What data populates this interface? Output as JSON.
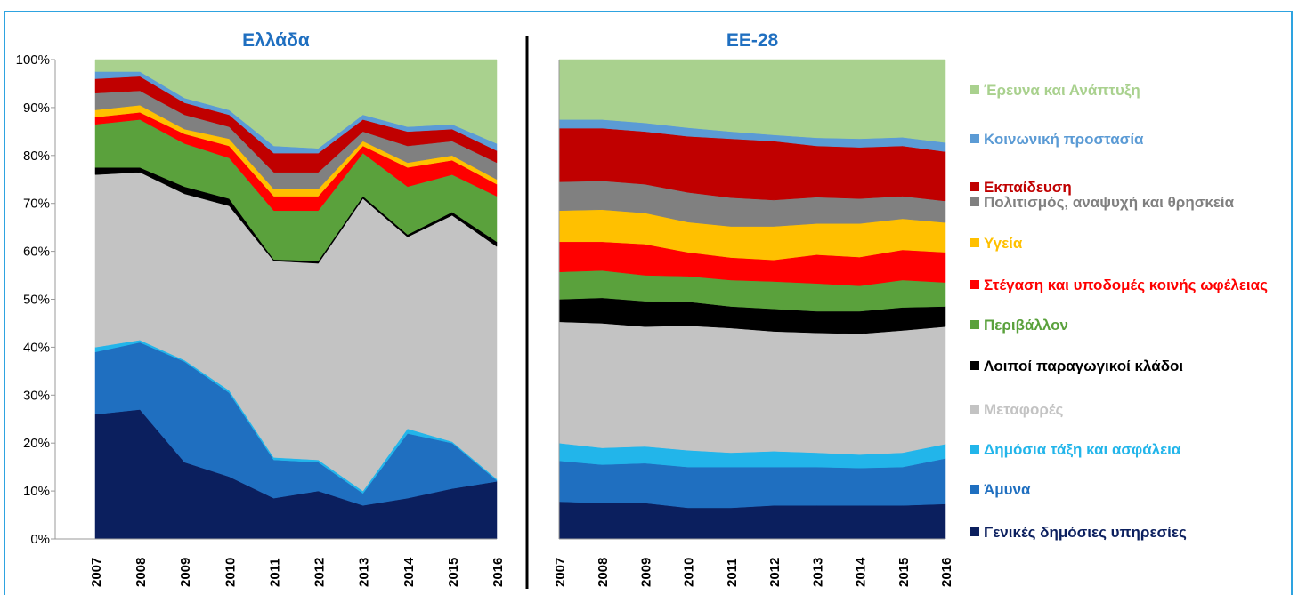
{
  "chart_data": [
    {
      "type": "area",
      "title": "Ελλάδα",
      "stacked": true,
      "categories": [
        "2007",
        "2008",
        "2009",
        "2010",
        "2011",
        "2012",
        "2013",
        "2014",
        "2015",
        "2016"
      ],
      "ylim": [
        0,
        100
      ],
      "yticks": [
        {
          "value": 0,
          "label": "0%"
        },
        {
          "value": 10,
          "label": "10%"
        },
        {
          "value": 20,
          "label": "20%"
        },
        {
          "value": 30,
          "label": "30%"
        },
        {
          "value": 40,
          "label": "40%"
        },
        {
          "value": 50,
          "label": "50%"
        },
        {
          "value": 60,
          "label": "60%"
        },
        {
          "value": 70,
          "label": "70%"
        },
        {
          "value": 80,
          "label": "80%"
        },
        {
          "value": 90,
          "label": "90%"
        },
        {
          "value": 100,
          "label": "100%"
        }
      ],
      "series": [
        {
          "color": "#0b1f5e",
          "values": [
            26,
            27,
            16,
            13,
            8.5,
            10,
            7,
            8.5,
            10.5,
            12
          ]
        },
        {
          "color": "#1f6fc0",
          "values": [
            13,
            14,
            21,
            17.5,
            8,
            6,
            2.5,
            13.5,
            9.5,
            0.2
          ]
        },
        {
          "color": "#22b5ea",
          "values": [
            1,
            0.5,
            0.3,
            0.5,
            0.5,
            0.5,
            0.5,
            1,
            0.3,
            0.3
          ]
        },
        {
          "color": "#c3c3c3",
          "values": [
            36,
            35,
            34.7,
            38.5,
            41,
            41,
            61,
            40,
            47.2,
            48.5
          ]
        },
        {
          "color": "#000000",
          "values": [
            1.5,
            1,
            1.5,
            1.5,
            0.3,
            0.5,
            0.5,
            0.5,
            0.7,
            1
          ]
        },
        {
          "color": "#5aa13c",
          "values": [
            9,
            10,
            9,
            8.5,
            10.2,
            10.5,
            9,
            10,
            7.8,
            9.5
          ]
        },
        {
          "color": "#ff0000",
          "values": [
            1.5,
            1.5,
            2,
            2.5,
            3,
            3,
            1.5,
            4,
            3,
            2.5
          ]
        },
        {
          "color": "#ffc000",
          "values": [
            1.5,
            1.5,
            1,
            1.5,
            1.5,
            1.5,
            1,
            1,
            1,
            1
          ]
        },
        {
          "color": "#808080",
          "values": [
            3.5,
            3,
            3,
            2.5,
            3.5,
            3.5,
            2,
            3.5,
            3,
            3.5
          ]
        },
        {
          "color": "#c00000",
          "values": [
            3,
            3,
            2.5,
            2.5,
            4,
            4,
            2.5,
            3,
            2.5,
            2.5
          ]
        },
        {
          "color": "#5b9bd5",
          "values": [
            1.5,
            1,
            1,
            1,
            1.5,
            1,
            1,
            1,
            1,
            1.5
          ]
        },
        {
          "color": "#a9d18e",
          "values": [
            2.5,
            2.5,
            8,
            10.5,
            18,
            18.5,
            11.5,
            14,
            13.5,
            17.5
          ]
        }
      ]
    },
    {
      "type": "area",
      "title": "ΕΕ-28",
      "stacked": true,
      "categories": [
        "2007",
        "2008",
        "2009",
        "2010",
        "2011",
        "2012",
        "2013",
        "2014",
        "2015",
        "2016"
      ],
      "ylim": [
        0,
        100
      ],
      "series": [
        {
          "name": "Γενικές δημόσιες υπηρεσίες",
          "color": "#0b1f5e",
          "values": [
            7.8,
            7.5,
            7.5,
            6.5,
            6.5,
            7,
            7,
            7,
            7,
            7.3
          ]
        },
        {
          "name": "Άμυνα",
          "color": "#1f6fc0",
          "values": [
            8.5,
            8,
            8.3,
            8.5,
            8.5,
            8,
            8,
            7.8,
            8,
            9.5
          ]
        },
        {
          "name": "Δημόσια τάξη και ασφάλεια",
          "color": "#22b5ea",
          "values": [
            3.7,
            3.5,
            3.5,
            3.5,
            3,
            3.3,
            3,
            2.8,
            3,
            3
          ]
        },
        {
          "name": "Μεταφορές",
          "color": "#c3c3c3",
          "values": [
            25.3,
            26,
            25,
            26,
            26,
            25,
            25,
            25.2,
            25.5,
            24.5
          ]
        },
        {
          "name": "Λοιποί παραγωγικοί κλάδοι",
          "color": "#000000",
          "values": [
            4.7,
            5.3,
            5.3,
            5,
            4.5,
            4.7,
            4.5,
            4.7,
            4.8,
            4.2
          ]
        },
        {
          "name": "Περιβάλλον",
          "color": "#5aa13c",
          "values": [
            5.7,
            5.7,
            5.4,
            5.3,
            5.5,
            5.7,
            5.8,
            5.3,
            5.7,
            5
          ]
        },
        {
          "name": "Στέγαση και υποδομές κοινής ωφέλειας",
          "color": "#ff0000",
          "values": [
            6.3,
            6,
            6.5,
            5,
            4.7,
            4.5,
            6,
            6,
            6.3,
            6.3
          ]
        },
        {
          "name": "Υγεία",
          "color": "#ffc000",
          "values": [
            6.5,
            6.7,
            6.5,
            6.3,
            6.5,
            7,
            6.5,
            7,
            6.5,
            6.2
          ]
        },
        {
          "name": "Πολιτισμός, αναψυχή και θρησκεία",
          "color": "#808080",
          "values": [
            6,
            6,
            6,
            6.2,
            6,
            5.5,
            5.5,
            5.2,
            4.7,
            4.5
          ]
        },
        {
          "name": "Εκπαίδευση",
          "color": "#c00000",
          "values": [
            11.2,
            11,
            11,
            11.7,
            12.3,
            12.3,
            10.7,
            10.7,
            10.5,
            10.3
          ]
        },
        {
          "name": "Κοινωνική προστασία",
          "color": "#5b9bd5",
          "values": [
            1.8,
            1.8,
            1.8,
            1.8,
            1.5,
            1.3,
            1.7,
            1.8,
            1.8,
            1.9
          ]
        },
        {
          "name": "Έρευνα και Ανάπτυξη",
          "color": "#a9d18e",
          "values": [
            12.5,
            12.5,
            13.2,
            14.2,
            15,
            15.7,
            16.3,
            16.5,
            16.2,
            17.3
          ]
        }
      ]
    }
  ]
}
